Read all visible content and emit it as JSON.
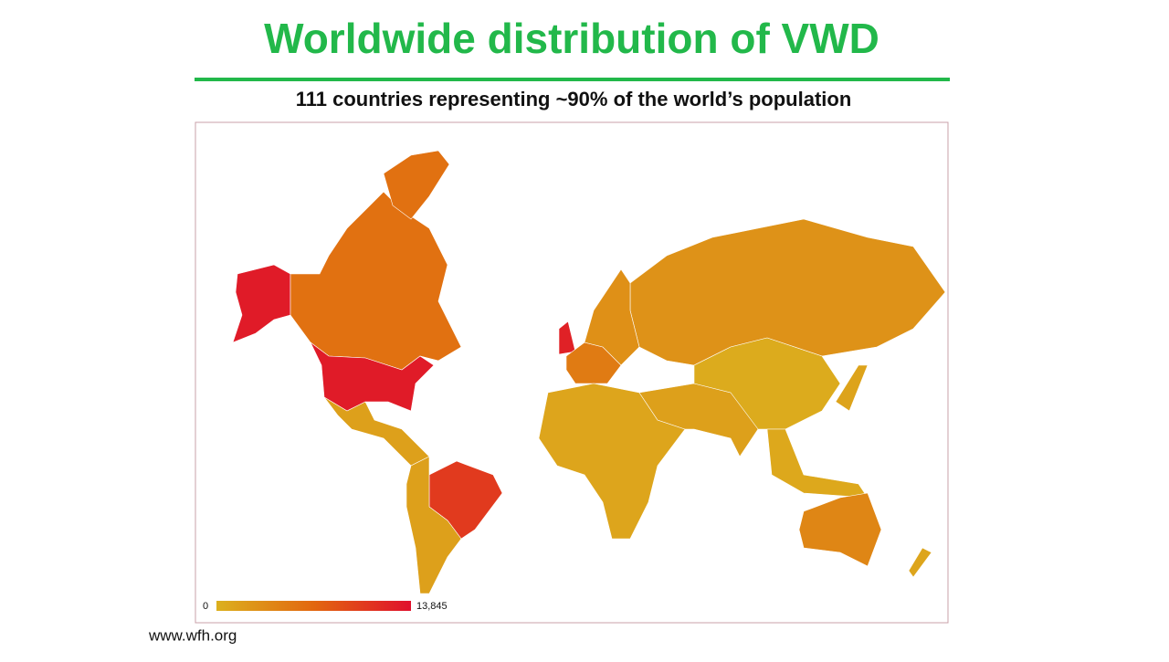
{
  "header": {
    "title": "Worldwide distribution of VWD",
    "subtitle": "111 countries representing ~90% of the world’s population"
  },
  "map": {
    "color_scale": [
      "#dcb01e",
      "#e2670f",
      "#e0102c"
    ],
    "legend": {
      "min": 0,
      "max": {
        "value": 13845,
        "label": "13,845"
      }
    },
    "regions": [
      13000,
      6000,
      6000,
      13000,
      1500,
      10500,
      1500,
      12500,
      5000,
      2800,
      3000,
      1000,
      1500,
      500,
      800,
      1200,
      4000,
      1000
    ]
  },
  "footer": {
    "source": "www.wfh.org"
  }
}
